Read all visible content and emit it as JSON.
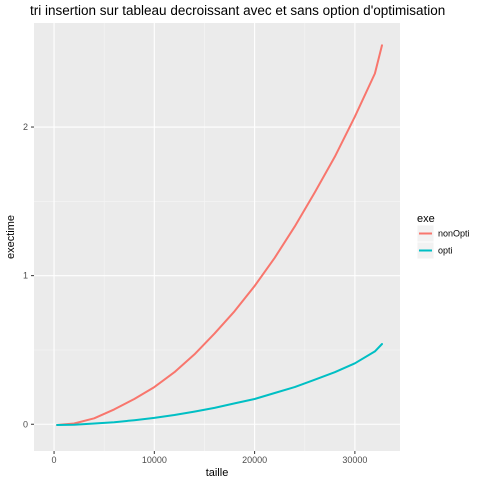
{
  "chart_data": {
    "type": "line",
    "title": "tri insertion sur tableau decroissant avec et sans option d'optimisation",
    "xlabel": "taille",
    "ylabel": "exectime",
    "xlim": [
      -2000,
      34500
    ],
    "ylim": [
      -0.18,
      2.7
    ],
    "x_ticks": [
      0,
      10000,
      20000,
      30000
    ],
    "y_ticks": [
      0,
      1,
      2
    ],
    "x_tick_labels": [
      "0",
      "10000",
      "20000",
      "30000"
    ],
    "y_tick_labels": [
      "0",
      "1",
      "2"
    ],
    "grid": true,
    "legend": {
      "title": "exe",
      "placement": "right"
    },
    "series": [
      {
        "name": "nonOpti",
        "color": "#F8766D",
        "x": [
          300,
          2000,
          4000,
          6000,
          8000,
          10000,
          12000,
          14000,
          16000,
          18000,
          20000,
          22000,
          24000,
          26000,
          28000,
          30000,
          32000,
          32700
        ],
        "y": [
          -0.005,
          0.005,
          0.04,
          0.1,
          0.17,
          0.25,
          0.35,
          0.47,
          0.61,
          0.76,
          0.93,
          1.12,
          1.33,
          1.56,
          1.8,
          2.07,
          2.36,
          2.55
        ]
      },
      {
        "name": "opti",
        "color": "#00BFC4",
        "x": [
          300,
          2000,
          4000,
          6000,
          8000,
          10000,
          12000,
          14000,
          16000,
          18000,
          20000,
          22000,
          24000,
          26000,
          28000,
          30000,
          32000,
          32700
        ],
        "y": [
          -0.005,
          -0.003,
          0.005,
          0.014,
          0.027,
          0.043,
          0.062,
          0.085,
          0.11,
          0.14,
          0.17,
          0.21,
          0.25,
          0.3,
          0.35,
          0.41,
          0.49,
          0.54
        ]
      }
    ]
  },
  "colors": {
    "panel_background": "#EBEBEB",
    "grid_major": "#FFFFFF",
    "legend_key_background": "#F2F2F2"
  }
}
